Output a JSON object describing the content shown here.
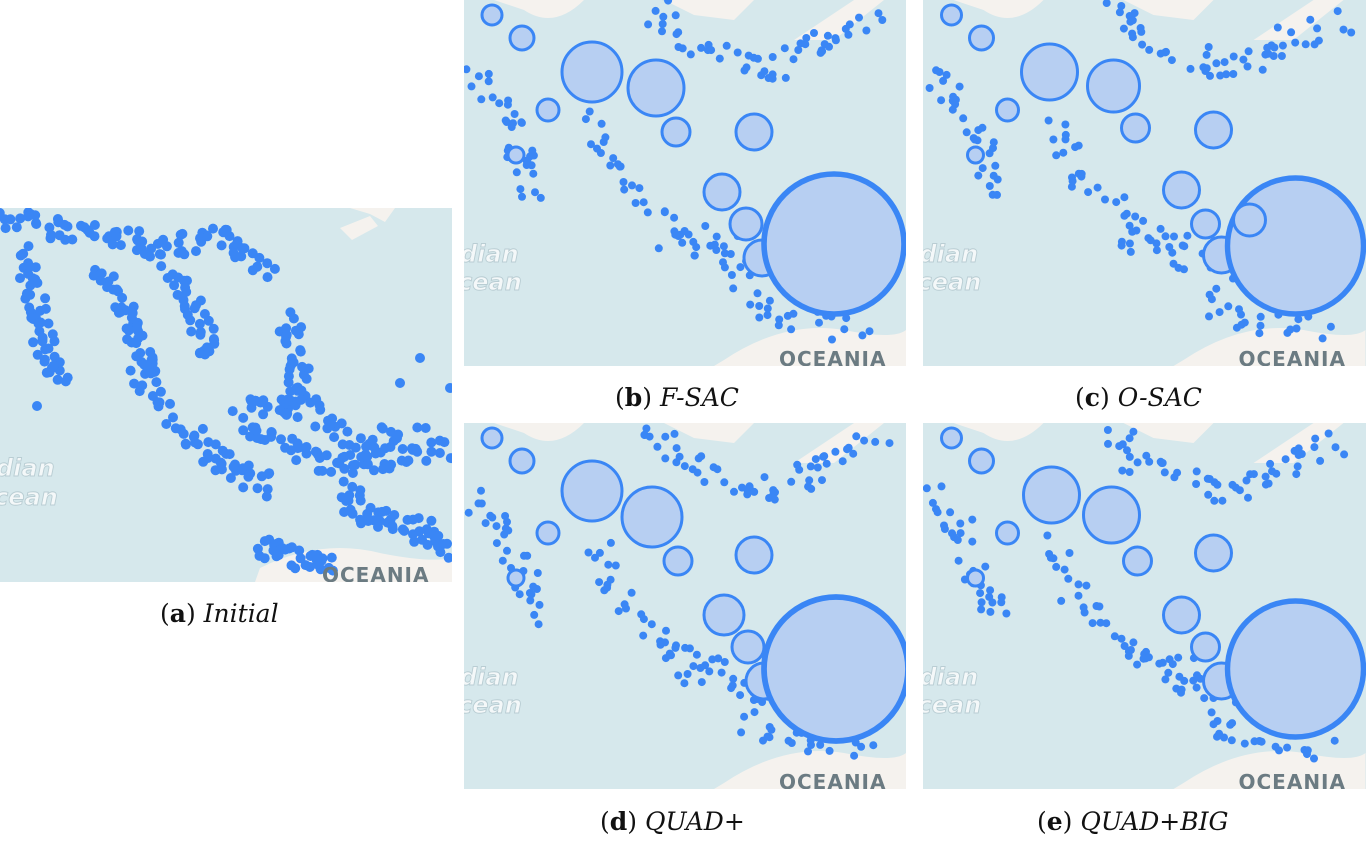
{
  "panels": [
    {
      "id": "a",
      "letter": "a",
      "name": "Initial",
      "ocean_label": [
        "dian",
        "cean"
      ],
      "region_label": "OCEANIA"
    },
    {
      "id": "b",
      "letter": "b",
      "name": "F-SAC",
      "ocean_label": [
        "dian",
        "cean"
      ],
      "region_label": "OCEANIA"
    },
    {
      "id": "c",
      "letter": "c",
      "name": "O-SAC",
      "ocean_label": [
        "dian",
        "cean"
      ],
      "region_label": "OCEANIA"
    },
    {
      "id": "d",
      "letter": "d",
      "name": "QUAD+",
      "ocean_label": [
        "dian",
        "cean"
      ],
      "region_label": "OCEANIA"
    },
    {
      "id": "e",
      "letter": "e",
      "name": "QUAD+BIG",
      "ocean_label": [
        "dian",
        "cean"
      ],
      "region_label": "OCEANIA"
    }
  ],
  "colors": {
    "sea": "#d6e8ec",
    "land": "#f5f2ee",
    "marker": "#3a86f5",
    "cluster_fill": "#b7cff2"
  }
}
